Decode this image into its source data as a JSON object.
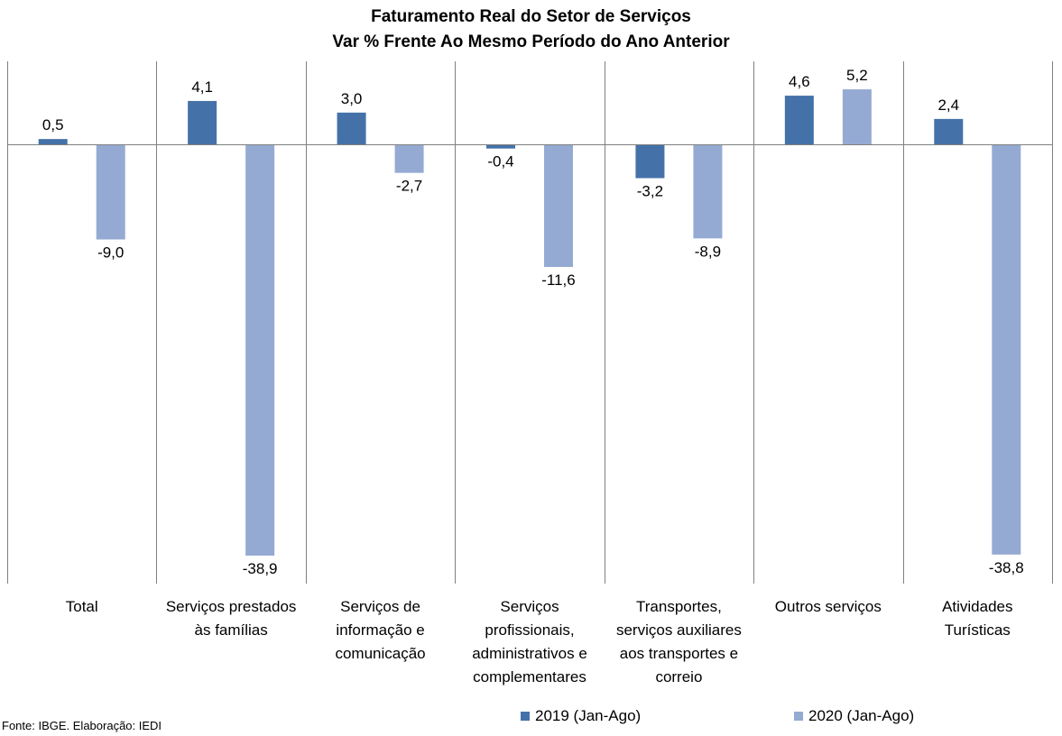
{
  "chart_data": {
    "type": "bar",
    "title": "Faturamento Real do Setor de Serviços",
    "subtitle": "Var % Frente Ao Mesmo Período do Ano Anterior",
    "categories": [
      "Total",
      "Serviços prestados às famílias",
      "Serviços de informação e comunicação",
      "Serviços profissionais, administrativos e complementares",
      "Transportes, serviços auxiliares aos transportes e correio",
      "Outros serviços",
      "Atividades Turísticas"
    ],
    "category_lines": [
      [
        "Total"
      ],
      [
        "Serviços prestados",
        "às famílias"
      ],
      [
        "Serviços de",
        "informação e",
        "comunicação"
      ],
      [
        "Serviços",
        "profissionais,",
        "administrativos e",
        "complementares"
      ],
      [
        "Transportes,",
        "serviços auxiliares",
        "aos transportes e",
        "correio"
      ],
      [
        "Outros serviços"
      ],
      [
        "Atividades",
        "Turísticas"
      ]
    ],
    "series": [
      {
        "name": "2019 (Jan-Ago)",
        "color": "#4472a8",
        "values": [
          0.5,
          4.1,
          3.0,
          -0.4,
          -3.2,
          4.6,
          2.4
        ],
        "labels": [
          "0,5",
          "4,1",
          "3,0",
          "-0,4",
          "-3,2",
          "4,6",
          "2,4"
        ]
      },
      {
        "name": "2020 (Jan-Ago)",
        "color": "#95aad3",
        "values": [
          -9.0,
          -38.9,
          -2.7,
          -11.6,
          -8.9,
          5.2,
          -38.8
        ],
        "labels": [
          "-9,0",
          "-38,9",
          "-2,7",
          "-11,6",
          "-8,9",
          "5,2",
          "-38,8"
        ]
      }
    ],
    "ylim": [
      -41.6,
      7.6
    ],
    "grid": false,
    "legend_position": "bottom"
  },
  "source": "Fonte: IBGE. Elaboração: IEDI"
}
